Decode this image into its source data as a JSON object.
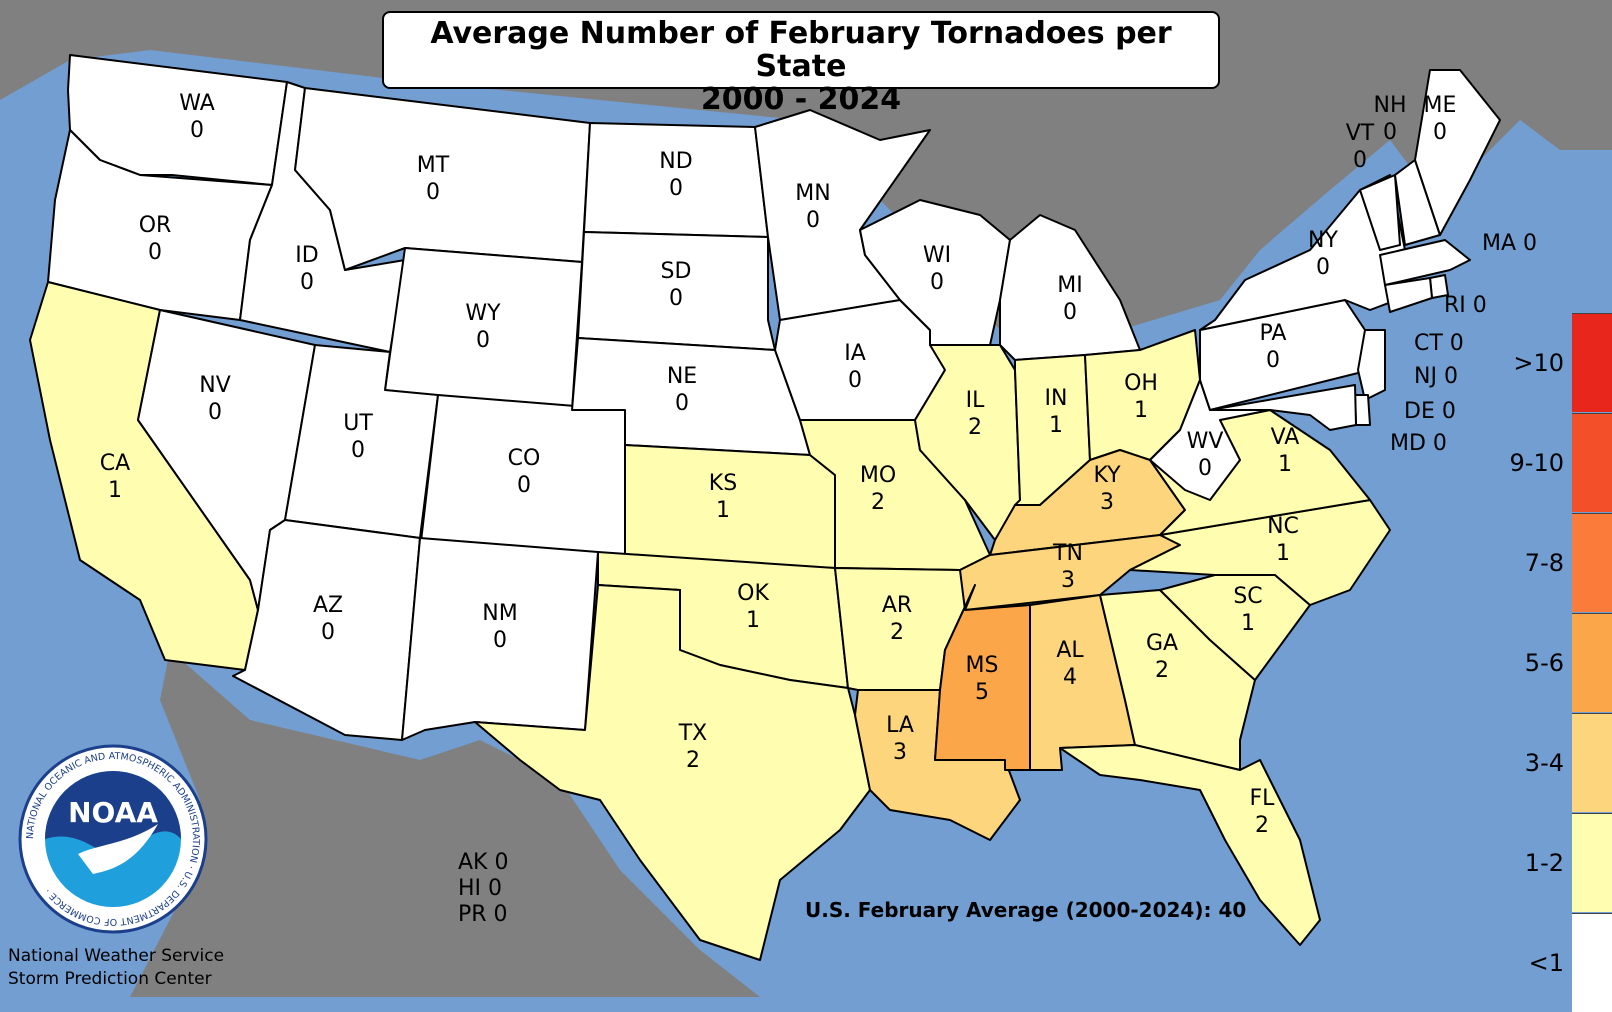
{
  "title": {
    "line1": "Average Number of February Tornadoes per State",
    "line2": "2000 - 2024"
  },
  "colors": {
    "ocean": "#729ed1",
    "land_other": "#808080",
    "zero": "#ffffff",
    "c1_2": "#fffdb0",
    "c3_4": "#fdd57d",
    "c5_6": "#fca64a"
  },
  "legend": [
    {
      "label": ">10",
      "color": "#e8261b"
    },
    {
      "label": "9-10",
      "color": "#f34f29"
    },
    {
      "label": "7-8",
      "color": "#fb7b3a"
    },
    {
      "label": "5-6",
      "color": "#fca64a"
    },
    {
      "label": "3-4",
      "color": "#fdd57d"
    },
    {
      "label": "1-2",
      "color": "#fffdb0"
    },
    {
      "label": "<1",
      "color": "#ffffff"
    }
  ],
  "states": [
    {
      "abbr": "WA",
      "value": "0"
    },
    {
      "abbr": "OR",
      "value": "0"
    },
    {
      "abbr": "CA",
      "value": "1"
    },
    {
      "abbr": "ID",
      "value": "0"
    },
    {
      "abbr": "NV",
      "value": "0"
    },
    {
      "abbr": "MT",
      "value": "0"
    },
    {
      "abbr": "WY",
      "value": "0"
    },
    {
      "abbr": "UT",
      "value": "0"
    },
    {
      "abbr": "AZ",
      "value": "0"
    },
    {
      "abbr": "CO",
      "value": "0"
    },
    {
      "abbr": "NM",
      "value": "0"
    },
    {
      "abbr": "ND",
      "value": "0"
    },
    {
      "abbr": "SD",
      "value": "0"
    },
    {
      "abbr": "NE",
      "value": "0"
    },
    {
      "abbr": "KS",
      "value": "1"
    },
    {
      "abbr": "OK",
      "value": "1"
    },
    {
      "abbr": "TX",
      "value": "2"
    },
    {
      "abbr": "MN",
      "value": "0"
    },
    {
      "abbr": "IA",
      "value": "0"
    },
    {
      "abbr": "MO",
      "value": "2"
    },
    {
      "abbr": "AR",
      "value": "2"
    },
    {
      "abbr": "LA",
      "value": "3"
    },
    {
      "abbr": "WI",
      "value": "0"
    },
    {
      "abbr": "IL",
      "value": "2"
    },
    {
      "abbr": "MI",
      "value": "0"
    },
    {
      "abbr": "IN",
      "value": "1"
    },
    {
      "abbr": "OH",
      "value": "1"
    },
    {
      "abbr": "KY",
      "value": "3"
    },
    {
      "abbr": "TN",
      "value": "3"
    },
    {
      "abbr": "MS",
      "value": "5"
    },
    {
      "abbr": "AL",
      "value": "4"
    },
    {
      "abbr": "GA",
      "value": "2"
    },
    {
      "abbr": "FL",
      "value": "2"
    },
    {
      "abbr": "SC",
      "value": "1"
    },
    {
      "abbr": "NC",
      "value": "1"
    },
    {
      "abbr": "VA",
      "value": "1"
    },
    {
      "abbr": "WV",
      "value": "0"
    },
    {
      "abbr": "PA",
      "value": "0"
    },
    {
      "abbr": "NY",
      "value": "0"
    },
    {
      "abbr": "VT",
      "value": "0"
    },
    {
      "abbr": "NH",
      "value": "0"
    },
    {
      "abbr": "ME",
      "value": "0"
    },
    {
      "abbr": "MA",
      "value": "0"
    },
    {
      "abbr": "RI",
      "value": "0"
    },
    {
      "abbr": "CT",
      "value": "0"
    },
    {
      "abbr": "NJ",
      "value": "0"
    },
    {
      "abbr": "DE",
      "value": "0"
    },
    {
      "abbr": "MD",
      "value": "0"
    }
  ],
  "side_labels": {
    "MA": "MA 0",
    "RI": "RI 0",
    "CT": "CT 0",
    "NJ": "NJ 0",
    "DE": "DE 0",
    "MD": "MD 0"
  },
  "other_regions": [
    "AK 0",
    "HI 0",
    "PR 0"
  ],
  "us_average": "U.S. February Average (2000-2024): 40",
  "logo": {
    "text": "NOAA",
    "ring_text": "NATIONAL OCEANIC AND ATMOSPHERIC ADMINISTRATION · U.S. DEPARTMENT OF COMMERCE ·"
  },
  "credit": {
    "line1": "National Weather Service",
    "line2": "Storm Prediction Center"
  }
}
